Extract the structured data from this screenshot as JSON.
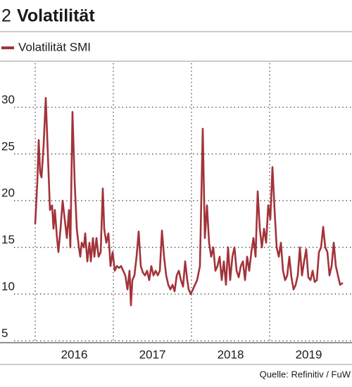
{
  "chart_data": {
    "type": "line",
    "title_number": "2",
    "title": "Volatilität",
    "source": "Quelle: Refinitiv / FuW",
    "xlim": [
      2016,
      2019.98
    ],
    "ylim": [
      4.8,
      34.7
    ],
    "yticks": [
      5,
      10,
      15,
      20,
      25,
      30
    ],
    "xgrid": [
      2016,
      2017,
      2018,
      2019
    ],
    "xticks": [
      {
        "value": 2016.5,
        "label": "2016"
      },
      {
        "value": 2017.5,
        "label": "2017"
      },
      {
        "value": 2018.5,
        "label": "2018"
      },
      {
        "value": 2019.5,
        "label": "2019"
      }
    ],
    "grid": true,
    "legend": "top-left",
    "x": [
      2016.0,
      2016.027,
      2016.045,
      2016.063,
      2016.081,
      2016.108,
      2016.135,
      2016.162,
      2016.189,
      2016.216,
      2016.234,
      2016.252,
      2016.279,
      2016.297,
      2016.324,
      2016.351,
      2016.378,
      2016.405,
      2016.432,
      2016.45,
      2016.477,
      2016.505,
      2016.532,
      2016.559,
      2016.577,
      2016.595,
      2016.622,
      2016.64,
      2016.667,
      2016.694,
      2016.712,
      2016.739,
      2016.757,
      2016.784,
      2016.811,
      2016.838,
      2016.865,
      2016.883,
      2016.91,
      2016.937,
      2016.964,
      2016.991,
      2017.018,
      2017.045,
      2017.072,
      2017.099,
      2017.126,
      2017.153,
      2017.18,
      2017.207,
      2017.225,
      2017.243,
      2017.27,
      2017.297,
      2017.324,
      2017.351,
      2017.378,
      2017.405,
      2017.432,
      2017.459,
      2017.486,
      2017.514,
      2017.541,
      2017.568,
      2017.595,
      2017.622,
      2017.649,
      2017.676,
      2017.703,
      2017.73,
      2017.757,
      2017.784,
      2017.811,
      2017.838,
      2017.865,
      2017.892,
      2017.919,
      2017.946,
      2017.964,
      2017.991,
      2018.018,
      2018.045,
      2018.072,
      2018.108,
      2018.144,
      2018.171,
      2018.198,
      2018.225,
      2018.252,
      2018.279,
      2018.306,
      2018.333,
      2018.36,
      2018.387,
      2018.414,
      2018.441,
      2018.468,
      2018.495,
      2018.523,
      2018.55,
      2018.577,
      2018.604,
      2018.631,
      2018.658,
      2018.685,
      2018.712,
      2018.739,
      2018.766,
      2018.793,
      2018.82,
      2018.847,
      2018.874,
      2018.901,
      2018.928,
      2018.955,
      2018.982,
      2019.009,
      2019.036,
      2019.063,
      2019.09,
      2019.117,
      2019.144,
      2019.171,
      2019.198,
      2019.225,
      2019.252,
      2019.279,
      2019.306,
      2019.333,
      2019.36,
      2019.387,
      2019.414,
      2019.441,
      2019.468,
      2019.495,
      2019.523,
      2019.55,
      2019.577,
      2019.604,
      2019.631,
      2019.658,
      2019.685,
      2019.712,
      2019.739,
      2019.766,
      2019.793,
      2019.82,
      2019.847,
      2019.874,
      2019.901,
      2019.937
    ],
    "series": [
      {
        "name": "Volatilität SMI",
        "color": "#a3333a",
        "values": [
          17.5,
          22,
          26.5,
          23,
          22.5,
          26,
          31,
          25,
          19,
          19.5,
          17,
          19,
          16,
          14.5,
          17,
          20,
          18,
          16,
          19,
          15,
          29.5,
          22,
          17,
          15,
          14,
          15.5,
          15,
          16.5,
          13.5,
          15.5,
          13.5,
          16,
          14,
          16,
          14,
          14.5,
          21.3,
          17,
          15.5,
          16.5,
          13,
          14.5,
          12.5,
          13,
          12.8,
          13,
          12.5,
          12,
          10.5,
          12.5,
          8.8,
          11.5,
          12,
          14,
          16.7,
          13,
          12.3,
          12,
          12.5,
          11.5,
          13,
          12,
          12.5,
          12,
          12.5,
          16.8,
          14,
          12,
          11,
          10.5,
          11,
          10.3,
          12,
          12.5,
          11.5,
          10.8,
          13.5,
          11.5,
          10.5,
          10,
          10.5,
          11,
          11.5,
          13,
          27.7,
          16,
          19.5,
          15.5,
          14,
          15,
          12.5,
          13,
          14,
          11.5,
          13.5,
          11,
          15,
          11.5,
          14,
          15,
          12.5,
          11.8,
          13,
          13.5,
          11.5,
          14,
          12.5,
          14.5,
          16,
          14,
          21,
          17,
          15,
          17,
          15.5,
          19.5,
          18,
          23.6,
          19,
          15,
          14,
          15.5,
          12.5,
          11.5,
          12,
          14,
          11.8,
          10.5,
          11,
          12,
          15,
          12,
          13.5,
          14.8,
          11.8,
          11.5,
          12.5,
          11.3,
          11.5,
          14.5,
          15,
          17.2,
          15,
          14.5,
          12,
          13,
          15.5,
          13,
          12,
          11,
          11.2
        ]
      }
    ]
  }
}
